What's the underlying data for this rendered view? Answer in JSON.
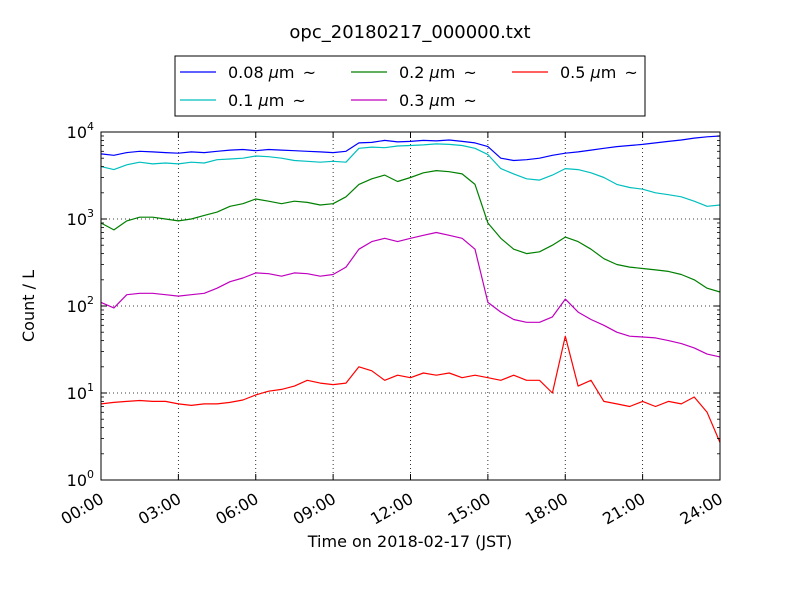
{
  "chart_data": {
    "type": "line",
    "title": "opc_20180217_000000.txt",
    "xlabel": "Time on 2018-02-17 (JST)",
    "ylabel": "Count / L",
    "xlim": [
      0,
      24
    ],
    "ylim": [
      1,
      10000
    ],
    "yscale": "log",
    "grid": true,
    "legend_position": "top-center, outside plot",
    "x_ticks": [
      "00:00",
      "03:00",
      "06:00",
      "09:00",
      "12:00",
      "15:00",
      "18:00",
      "21:00",
      "24:00"
    ],
    "y_ticks": [
      {
        "base": "10",
        "exp": "0"
      },
      {
        "base": "10",
        "exp": "1"
      },
      {
        "base": "10",
        "exp": "2"
      },
      {
        "base": "10",
        "exp": "3"
      },
      {
        "base": "10",
        "exp": "4"
      }
    ],
    "unit_micro": "μ",
    "series": [
      {
        "name": "0.08 μm ~",
        "size_value": "0.08",
        "size_unit": "m",
        "tilde": "~",
        "color": "#0000ff",
        "points": [
          [
            0,
            5600
          ],
          [
            0.5,
            5400
          ],
          [
            1,
            5800
          ],
          [
            1.5,
            6000
          ],
          [
            2,
            5900
          ],
          [
            2.5,
            5800
          ],
          [
            3,
            5700
          ],
          [
            3.5,
            5900
          ],
          [
            4,
            5800
          ],
          [
            4.5,
            6000
          ],
          [
            5,
            6200
          ],
          [
            5.5,
            6300
          ],
          [
            6,
            6100
          ],
          [
            6.5,
            6300
          ],
          [
            7,
            6200
          ],
          [
            7.5,
            6100
          ],
          [
            8,
            6000
          ],
          [
            8.5,
            5900
          ],
          [
            9,
            5800
          ],
          [
            9.5,
            6000
          ],
          [
            10,
            7500
          ],
          [
            10.5,
            7600
          ],
          [
            11,
            8000
          ],
          [
            11.5,
            7700
          ],
          [
            12,
            7800
          ],
          [
            12.5,
            8000
          ],
          [
            13,
            7900
          ],
          [
            13.5,
            8100
          ],
          [
            14,
            7800
          ],
          [
            14.5,
            7500
          ],
          [
            15,
            6800
          ],
          [
            15.5,
            5000
          ],
          [
            16,
            4700
          ],
          [
            16.5,
            4800
          ],
          [
            17,
            5000
          ],
          [
            17.5,
            5400
          ],
          [
            18,
            5700
          ],
          [
            18.5,
            5900
          ],
          [
            19,
            6200
          ],
          [
            19.5,
            6500
          ],
          [
            20,
            6800
          ],
          [
            20.5,
            7000
          ],
          [
            21,
            7200
          ],
          [
            21.5,
            7500
          ],
          [
            22,
            7800
          ],
          [
            22.5,
            8100
          ],
          [
            23,
            8500
          ],
          [
            23.5,
            8800
          ],
          [
            24,
            9000
          ]
        ]
      },
      {
        "name": "0.1 μm ~",
        "size_value": "0.1",
        "size_unit": "m",
        "tilde": "~",
        "color": "#00bfbf",
        "points": [
          [
            0,
            4000
          ],
          [
            0.5,
            3700
          ],
          [
            1,
            4200
          ],
          [
            1.5,
            4500
          ],
          [
            2,
            4300
          ],
          [
            2.5,
            4400
          ],
          [
            3,
            4300
          ],
          [
            3.5,
            4500
          ],
          [
            4,
            4400
          ],
          [
            4.5,
            4800
          ],
          [
            5,
            4900
          ],
          [
            5.5,
            5000
          ],
          [
            6,
            5300
          ],
          [
            6.5,
            5200
          ],
          [
            7,
            5000
          ],
          [
            7.5,
            4700
          ],
          [
            8,
            4600
          ],
          [
            8.5,
            4500
          ],
          [
            9,
            4600
          ],
          [
            9.5,
            4500
          ],
          [
            10,
            6500
          ],
          [
            10.5,
            6700
          ],
          [
            11,
            6600
          ],
          [
            11.5,
            6900
          ],
          [
            12,
            7000
          ],
          [
            12.5,
            7100
          ],
          [
            13,
            7300
          ],
          [
            13.5,
            7200
          ],
          [
            14,
            7000
          ],
          [
            14.5,
            6500
          ],
          [
            15,
            5500
          ],
          [
            15.5,
            3800
          ],
          [
            16,
            3300
          ],
          [
            16.5,
            2900
          ],
          [
            17,
            2800
          ],
          [
            17.5,
            3200
          ],
          [
            18,
            3800
          ],
          [
            18.5,
            3700
          ],
          [
            19,
            3400
          ],
          [
            19.5,
            3000
          ],
          [
            20,
            2500
          ],
          [
            20.5,
            2300
          ],
          [
            21,
            2200
          ],
          [
            21.5,
            2000
          ],
          [
            22,
            1900
          ],
          [
            22.5,
            1800
          ],
          [
            23,
            1600
          ],
          [
            23.5,
            1400
          ],
          [
            24,
            1450
          ]
        ]
      },
      {
        "name": "0.2 μm ~",
        "size_value": "0.2",
        "size_unit": "m",
        "tilde": "~",
        "color": "#008000",
        "points": [
          [
            0,
            900
          ],
          [
            0.5,
            750
          ],
          [
            1,
            950
          ],
          [
            1.5,
            1050
          ],
          [
            2,
            1050
          ],
          [
            2.5,
            1000
          ],
          [
            3,
            950
          ],
          [
            3.5,
            1000
          ],
          [
            4,
            1100
          ],
          [
            4.5,
            1200
          ],
          [
            5,
            1400
          ],
          [
            5.5,
            1500
          ],
          [
            6,
            1700
          ],
          [
            6.5,
            1600
          ],
          [
            7,
            1500
          ],
          [
            7.5,
            1600
          ],
          [
            8,
            1550
          ],
          [
            8.5,
            1450
          ],
          [
            9,
            1500
          ],
          [
            9.5,
            1800
          ],
          [
            10,
            2500
          ],
          [
            10.5,
            2900
          ],
          [
            11,
            3200
          ],
          [
            11.5,
            2700
          ],
          [
            12,
            3000
          ],
          [
            12.5,
            3400
          ],
          [
            13,
            3600
          ],
          [
            13.5,
            3500
          ],
          [
            14,
            3300
          ],
          [
            14.5,
            2500
          ],
          [
            15,
            900
          ],
          [
            15.5,
            600
          ],
          [
            16,
            450
          ],
          [
            16.5,
            400
          ],
          [
            17,
            420
          ],
          [
            17.5,
            500
          ],
          [
            18,
            620
          ],
          [
            18.5,
            550
          ],
          [
            19,
            450
          ],
          [
            19.5,
            350
          ],
          [
            20,
            300
          ],
          [
            20.5,
            280
          ],
          [
            21,
            270
          ],
          [
            21.5,
            260
          ],
          [
            22,
            250
          ],
          [
            22.5,
            230
          ],
          [
            23,
            200
          ],
          [
            23.5,
            160
          ],
          [
            24,
            145
          ]
        ]
      },
      {
        "name": "0.3 μm ~",
        "size_value": "0.3",
        "size_unit": "m",
        "tilde": "~",
        "color": "#bf00bf",
        "points": [
          [
            0,
            110
          ],
          [
            0.5,
            95
          ],
          [
            1,
            135
          ],
          [
            1.5,
            140
          ],
          [
            2,
            140
          ],
          [
            2.5,
            135
          ],
          [
            3,
            130
          ],
          [
            3.5,
            135
          ],
          [
            4,
            140
          ],
          [
            4.5,
            160
          ],
          [
            5,
            190
          ],
          [
            5.5,
            210
          ],
          [
            6,
            240
          ],
          [
            6.5,
            235
          ],
          [
            7,
            220
          ],
          [
            7.5,
            240
          ],
          [
            8,
            235
          ],
          [
            8.5,
            220
          ],
          [
            9,
            230
          ],
          [
            9.5,
            280
          ],
          [
            10,
            450
          ],
          [
            10.5,
            550
          ],
          [
            11,
            600
          ],
          [
            11.5,
            550
          ],
          [
            12,
            600
          ],
          [
            12.5,
            650
          ],
          [
            13,
            700
          ],
          [
            13.5,
            650
          ],
          [
            14,
            600
          ],
          [
            14.5,
            450
          ],
          [
            15,
            110
          ],
          [
            15.5,
            85
          ],
          [
            16,
            70
          ],
          [
            16.5,
            65
          ],
          [
            17,
            65
          ],
          [
            17.5,
            75
          ],
          [
            18,
            120
          ],
          [
            18.5,
            85
          ],
          [
            19,
            70
          ],
          [
            19.5,
            60
          ],
          [
            20,
            50
          ],
          [
            20.5,
            45
          ],
          [
            21,
            44
          ],
          [
            21.5,
            43
          ],
          [
            22,
            40
          ],
          [
            22.5,
            37
          ],
          [
            23,
            33
          ],
          [
            23.5,
            28
          ],
          [
            24,
            26
          ]
        ]
      },
      {
        "name": "0.5 μm ~",
        "size_value": "0.5",
        "size_unit": "m",
        "tilde": "~",
        "color": "#ff0000",
        "points": [
          [
            0,
            7.5
          ],
          [
            0.5,
            7.8
          ],
          [
            1,
            8.0
          ],
          [
            1.5,
            8.2
          ],
          [
            2,
            8.0
          ],
          [
            2.5,
            8.0
          ],
          [
            3,
            7.5
          ],
          [
            3.5,
            7.2
          ],
          [
            4,
            7.5
          ],
          [
            4.5,
            7.5
          ],
          [
            5,
            7.8
          ],
          [
            5.5,
            8.3
          ],
          [
            6,
            9.5
          ],
          [
            6.5,
            10.5
          ],
          [
            7,
            11
          ],
          [
            7.5,
            12
          ],
          [
            8,
            14
          ],
          [
            8.5,
            13
          ],
          [
            9,
            12.5
          ],
          [
            9.5,
            13
          ],
          [
            10,
            20
          ],
          [
            10.5,
            18
          ],
          [
            11,
            14
          ],
          [
            11.5,
            16
          ],
          [
            12,
            15
          ],
          [
            12.5,
            17
          ],
          [
            13,
            16
          ],
          [
            13.5,
            17
          ],
          [
            14,
            15
          ],
          [
            14.5,
            16
          ],
          [
            15,
            15
          ],
          [
            15.5,
            14
          ],
          [
            16,
            16
          ],
          [
            16.5,
            14
          ],
          [
            17,
            14
          ],
          [
            17.5,
            10
          ],
          [
            18,
            45
          ],
          [
            18.5,
            12
          ],
          [
            19,
            14
          ],
          [
            19.5,
            8
          ],
          [
            20,
            7.5
          ],
          [
            20.5,
            7
          ],
          [
            21,
            8
          ],
          [
            21.5,
            7
          ],
          [
            22,
            8
          ],
          [
            22.5,
            7.5
          ],
          [
            23,
            9
          ],
          [
            23.5,
            6
          ],
          [
            24,
            2.7
          ]
        ]
      }
    ]
  }
}
